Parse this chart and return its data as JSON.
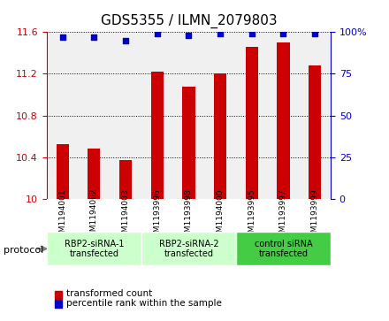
{
  "title": "GDS5355 / ILMN_2079803",
  "categories": [
    "GSM1194001",
    "GSM1194002",
    "GSM1194003",
    "GSM1193996",
    "GSM1193998",
    "GSM1194000",
    "GSM1193995",
    "GSM1193997",
    "GSM1193999"
  ],
  "red_values": [
    10.53,
    10.48,
    10.37,
    11.22,
    11.08,
    11.2,
    11.46,
    11.5,
    11.28
  ],
  "blue_values": [
    97,
    97,
    95,
    99,
    98,
    99,
    99,
    99,
    99
  ],
  "ylim_left": [
    10.0,
    11.6
  ],
  "ylim_right": [
    0,
    100
  ],
  "yticks_left": [
    10.0,
    10.4,
    10.8,
    11.2,
    11.6
  ],
  "yticks_right": [
    0,
    25,
    50,
    75,
    100
  ],
  "ytick_labels_left": [
    "10",
    "10.4",
    "10.8",
    "11.2",
    "11.6"
  ],
  "ytick_labels_right": [
    "0",
    "25",
    "50",
    "75",
    "100%"
  ],
  "bar_color": "#cc0000",
  "dot_color": "#0000cc",
  "groups": [
    {
      "label": "RBP2-siRNA-1\ntransfected",
      "start": 0,
      "end": 3,
      "color": "#ccffcc"
    },
    {
      "label": "RBP2-siRNA-2\ntransfected",
      "start": 3,
      "end": 6,
      "color": "#ccffcc"
    },
    {
      "label": "control siRNA\ntransfected",
      "start": 6,
      "end": 9,
      "color": "#44cc44"
    }
  ],
  "protocol_label": "protocol",
  "legend_items": [
    {
      "color": "#cc0000",
      "label": "transformed count"
    },
    {
      "color": "#0000cc",
      "label": "percentile rank within the sample"
    }
  ],
  "bar_width": 0.4,
  "background_color": "#ffffff",
  "plot_bg_color": "#f0f0f0",
  "grid_color": "#000000",
  "title_fontsize": 11,
  "tick_fontsize": 8,
  "label_fontsize": 8
}
